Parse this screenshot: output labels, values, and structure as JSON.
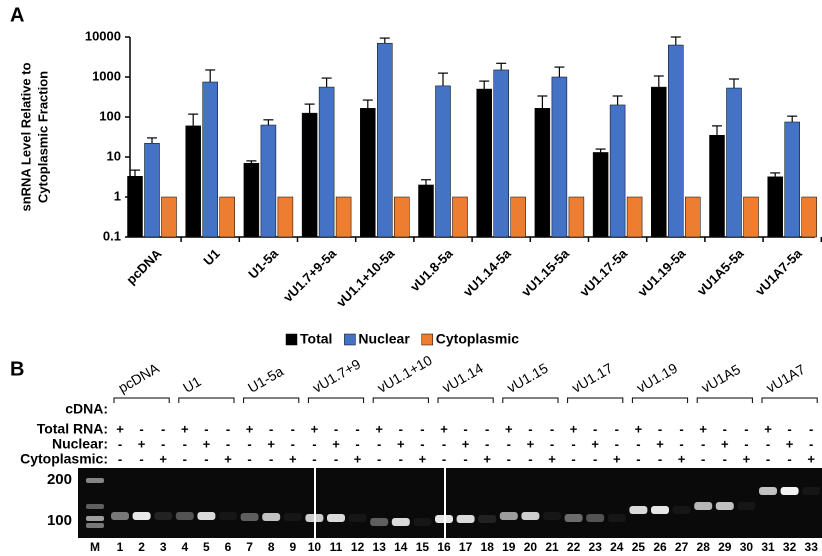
{
  "panels": [
    "A",
    "B"
  ],
  "chart_data": {
    "type": "bar",
    "y_label_lines": [
      "snRNA Level Relative to",
      "Cytoplasmic Fraction"
    ],
    "categories": [
      "pcDNA",
      "U1",
      "U1-5a",
      "vU1.7+9-5a",
      "vU1.1+10-5a",
      "vU1.8-5a",
      "vU1.14-5a",
      "vU1.15-5a",
      "vU1.17-5a",
      "vU1.19-5a",
      "vU1A5-5a",
      "vU1A7-5a"
    ],
    "series": [
      {
        "name": "Total",
        "color": "#000000",
        "values": [
          3.3,
          60,
          7,
          125,
          165,
          2,
          500,
          165,
          13,
          560,
          35,
          3.2
        ],
        "errors": [
          1.4,
          58,
          1,
          85,
          100,
          0.7,
          290,
          170,
          2.8,
          500,
          25,
          0.8
        ]
      },
      {
        "name": "Nuclear",
        "color": "#4472c4",
        "values": [
          22,
          750,
          63,
          560,
          7000,
          600,
          1500,
          1000,
          200,
          6300,
          530,
          75
        ],
        "errors": [
          8,
          750,
          22,
          380,
          2400,
          650,
          700,
          770,
          135,
          3700,
          360,
          30
        ]
      },
      {
        "name": "Cytoplasmic",
        "color": "#ed7d31",
        "values": [
          1,
          1,
          1,
          1,
          1,
          1,
          1,
          1,
          1,
          1,
          1,
          1
        ]
      }
    ],
    "log_scale": true,
    "ylim": [
      0.1,
      10000
    ],
    "yticks": [
      0.1,
      1,
      10,
      100,
      1000,
      10000
    ],
    "legend": "bottom"
  },
  "gel": {
    "groups": [
      "pcDNA",
      "U1",
      "U1-5a",
      "vU1.7+9",
      "vU1.1+10",
      "vU1.14",
      "vU1.15",
      "vU1.17",
      "vU1.19",
      "vU1A5",
      "vU1A7"
    ],
    "row_labels": [
      "cDNA:",
      "Total RNA:",
      "Nuclear:",
      "Cytoplasmic:"
    ],
    "sign_rows": [
      [
        "+",
        "-",
        "-",
        "+",
        "-",
        "-",
        "+",
        "-",
        "-",
        "+",
        "-",
        "-",
        "+",
        "-",
        "-",
        "+",
        "-",
        "-",
        "+",
        "-",
        "-",
        "+",
        "-",
        "-",
        "+",
        "-",
        "-",
        "+",
        "-",
        "-",
        "+",
        "-",
        "-"
      ],
      [
        "-",
        "+",
        "-",
        "-",
        "+",
        "-",
        "-",
        "+",
        "-",
        "-",
        "+",
        "-",
        "-",
        "+",
        "-",
        "-",
        "+",
        "-",
        "-",
        "+",
        "-",
        "-",
        "+",
        "-",
        "-",
        "+",
        "-",
        "-",
        "+",
        "-",
        "-",
        "+",
        "-"
      ],
      [
        "-",
        "-",
        "+",
        "-",
        "-",
        "+",
        "-",
        "-",
        "+",
        "-",
        "-",
        "+",
        "-",
        "-",
        "+",
        "-",
        "-",
        "+",
        "-",
        "-",
        "+",
        "-",
        "-",
        "+",
        "-",
        "-",
        "+",
        "-",
        "-",
        "+",
        "-",
        "-",
        "+"
      ]
    ],
    "marker_sizes": [
      "200",
      "100"
    ],
    "lanes": [
      "M",
      "1",
      "2",
      "3",
      "4",
      "5",
      "6",
      "7",
      "8",
      "9",
      "10",
      "11",
      "12",
      "13",
      "14",
      "15",
      "16",
      "17",
      "18",
      "19",
      "20",
      "21",
      "22",
      "23",
      "24",
      "25",
      "26",
      "27",
      "28",
      "29",
      "30",
      "31",
      "32",
      "33"
    ]
  }
}
